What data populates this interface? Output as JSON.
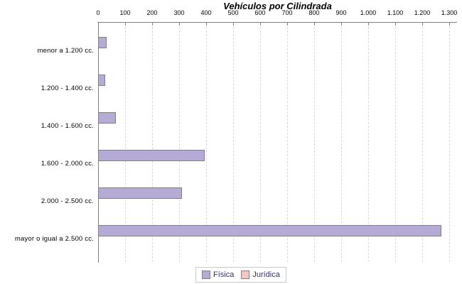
{
  "title": "Vehículos por Cilindrada",
  "chart_data": {
    "type": "bar",
    "orientation": "horizontal",
    "title": "Vehículos por Cilindrada",
    "categories": [
      "menor a 1.200 cc.",
      "1.200 - 1.400 cc.",
      "1.400 - 1.600 cc.",
      "1.600 - 2.000 cc.",
      "2.000 - 2.500 cc.",
      "mayor o igual a 2.500 cc."
    ],
    "series": [
      {
        "name": "Física",
        "color": "#b5abd6",
        "values": [
          25,
          20,
          60,
          390,
          305,
          1265
        ]
      },
      {
        "name": "Jurídica",
        "color": "#f8c5c5",
        "values": [
          0,
          0,
          0,
          0,
          0,
          0
        ]
      }
    ],
    "xlim": [
      0,
      1300
    ],
    "x_tick_labels": [
      "0",
      "100",
      "200",
      "300",
      "400",
      "500",
      "600",
      "700",
      "800",
      "900",
      "1.000",
      "1.100",
      "1.200",
      "1.300"
    ],
    "grid": "vertical-dashed",
    "legend_position": "bottom-center"
  },
  "legend": {
    "items": [
      {
        "label": "Física",
        "color": "#b5abd6"
      },
      {
        "label": "Jurídica",
        "color": "#f8c5c5"
      }
    ]
  },
  "colors": {
    "axis": "#808080",
    "gridline": "#d9d9d9",
    "bar_border": "#7f7f7f",
    "legend_text": "#333366",
    "legend_border": "#c8c8c8",
    "background": "#ffffff"
  }
}
